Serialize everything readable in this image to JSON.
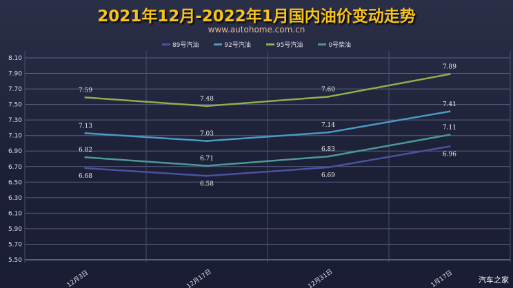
{
  "chart_data": {
    "type": "line",
    "title": "2021年12月-2022年1月国内油价变动走势",
    "subtitle": "www.autohome.com.cn",
    "categories": [
      "12月3日",
      "12月17日",
      "12月31日",
      "1月17日"
    ],
    "ylim": [
      5.5,
      8.1
    ],
    "yticks": [
      "5.50",
      "5.70",
      "5.90",
      "6.10",
      "6.30",
      "6.50",
      "6.70",
      "6.90",
      "7.10",
      "7.30",
      "7.50",
      "7.70",
      "7.90",
      "8.10"
    ],
    "grid": true,
    "legend": "top",
    "series": [
      {
        "name": "89号汽油",
        "values": [
          6.68,
          6.58,
          6.69,
          6.96
        ],
        "color": "#4b52a0",
        "label_pos": "below"
      },
      {
        "name": "92号汽油",
        "values": [
          7.13,
          7.03,
          7.14,
          7.41
        ],
        "color": "#4a9bc6",
        "label_pos": "above"
      },
      {
        "name": "95号汽油",
        "values": [
          7.59,
          7.48,
          7.6,
          7.89
        ],
        "color": "#8db04c",
        "label_pos": "above"
      },
      {
        "name": "0号柴油",
        "values": [
          6.82,
          6.71,
          6.83,
          7.11
        ],
        "color": "#4a9a98",
        "label_pos": "above"
      }
    ]
  },
  "watermark": "汽车之家"
}
